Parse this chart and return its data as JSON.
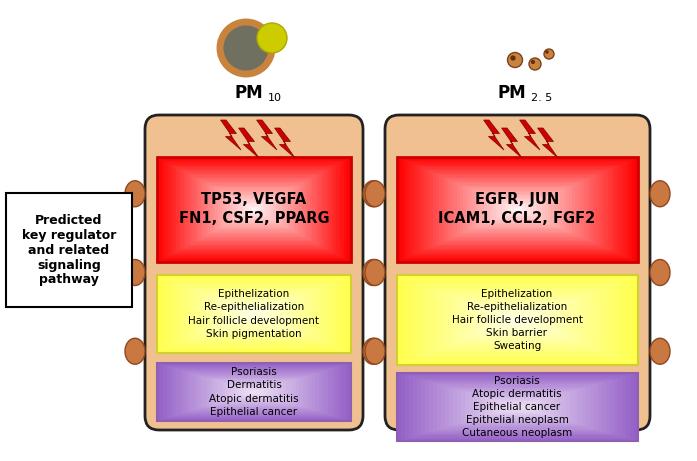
{
  "background_color": "#ffffff",
  "box_bg_color": "#f0c090",
  "box_border_color": "#222222",
  "left_panel": {
    "pm_label": "PM",
    "pm_subscript": "10",
    "red_text": "TP53, VEGFA\nFN1, CSF2, PPARG",
    "yellow_text": "Epithelization\nRe-epithelialization\nHair follicle development\nSkin pigmentation",
    "purple_text": "Psoriasis\nDermatitis\nAtopic dermatitis\nEpithelial cancer"
  },
  "right_panel": {
    "pm_label": "PM",
    "pm_subscript": "2. 5",
    "red_text": "EGFR, JUN\nICAM1, CCL2, FGF2",
    "yellow_text": "Epithelization\nRe-epithelialization\nHair follicle development\nSkin barrier\nSweating",
    "purple_text": "Psoriasis\nAtopic dermatitis\nEpithelial cancer\nEpithelial neoplasm\nCutaneous neoplasm"
  },
  "left_box_label": {
    "text": "Predicted\nkey regulator\nand related\nsignaling\npathway",
    "fontsize": 9
  },
  "oval_color": "#c87840",
  "lightning_color": "#cc0000",
  "pm10_big_color": "#707060",
  "pm10_ring_color": "#c8843c",
  "pm10_small_color": "#cccc00",
  "pm25_particle_color": "#c8843c"
}
